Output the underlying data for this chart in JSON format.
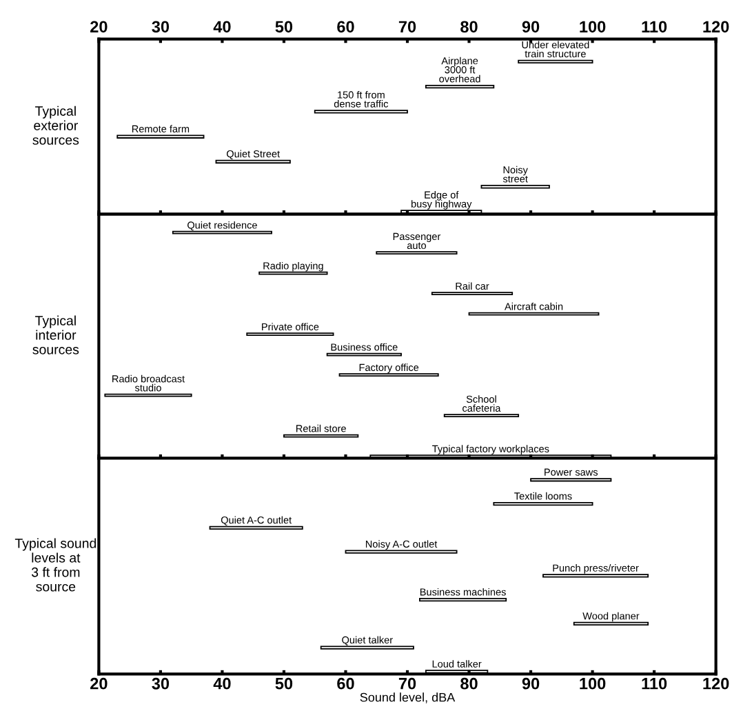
{
  "chart_data": [
    {
      "type": "bar",
      "orientation": "horizontal",
      "ylabel": "Typical\nexterior\nsources",
      "color": "#ffffff",
      "categories": [
        "Under elevated\ntrain structure",
        "Airplane\n3000 ft\noverhead",
        "150 ft from\ndense traffic",
        "Remote farm",
        "Quiet Street",
        "Noisy\nstreet",
        "Edge of\nbusy highway"
      ],
      "base": [
        88,
        73,
        55,
        23,
        39,
        82,
        69
      ],
      "values": [
        12,
        11,
        15,
        14,
        12,
        11,
        13
      ],
      "xlim": [
        20,
        120
      ],
      "xticks": [
        20,
        30,
        40,
        50,
        60,
        70,
        80,
        90,
        100,
        110,
        120
      ],
      "tick_labels": "x"
    },
    {
      "type": "bar",
      "orientation": "horizontal",
      "ylabel": "Typical\ninterior\nsources",
      "color": "#ffffff",
      "categories": [
        "Quiet residence",
        "Passenger\nauto",
        "Radio playing",
        "Rail car",
        "Aircraft cabin",
        "Private office",
        "Business office",
        "Factory office",
        "Radio broadcast\nstudio",
        "School\ncafeteria",
        "Retail store",
        "Typical factory workplaces"
      ],
      "base": [
        32,
        65,
        46,
        74,
        80,
        44,
        57,
        59,
        21,
        76,
        50,
        64
      ],
      "values": [
        16,
        13,
        11,
        13,
        21,
        14,
        12,
        16,
        14,
        12,
        12,
        39
      ],
      "xlim": [
        20,
        120
      ],
      "xticks": [
        20,
        30,
        40,
        50,
        60,
        70,
        80,
        90,
        100,
        110,
        120
      ],
      "tick_labels": false
    },
    {
      "type": "bar",
      "orientation": "horizontal",
      "ylabel": "Typical sound\nlevels at\n3 ft from\nsource",
      "xlabel": "Sound level, dBA",
      "color": "#ffffff",
      "categories": [
        "Power saws",
        "Textile looms",
        "Quiet A-C outlet",
        "Noisy A-C outlet",
        "Punch press/riveter",
        "Business machines",
        "Wood planer",
        "Quiet talker",
        "Loud talker"
      ],
      "base": [
        90,
        84,
        38,
        60,
        92,
        72,
        97,
        56,
        73
      ],
      "values": [
        13,
        16,
        15,
        18,
        17,
        14,
        12,
        15,
        10
      ],
      "xlim": [
        20,
        120
      ],
      "xticks": [
        20,
        30,
        40,
        50,
        60,
        70,
        80,
        90,
        100,
        110,
        120
      ],
      "tick_labels": "x"
    }
  ]
}
